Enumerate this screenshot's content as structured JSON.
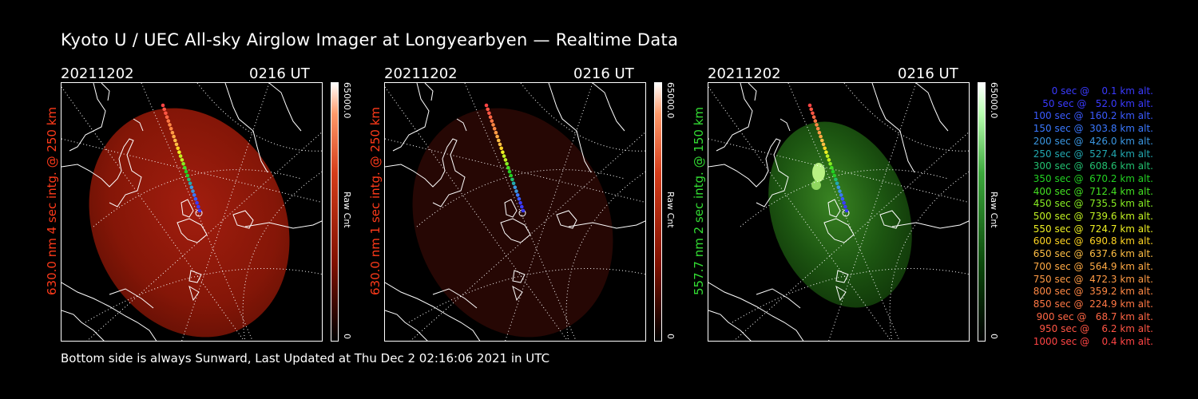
{
  "title": "Kyoto U / UEC All-sky Airglow Imager at Longyearbyen — Realtime Data",
  "footer": "Bottom side is always Sunward, Last Updated at Thu Dec  2 02:16:06 2021 in UTC",
  "panels": [
    {
      "date": "20211202",
      "time": "0216 UT",
      "label": "630.0 nm 4 sec intg. @ 250 km",
      "label_color": "#ff3a1a",
      "cbar_max": "65000.0",
      "cbar_min": "0",
      "cbar_unit": "Raw Cnt"
    },
    {
      "date": "20211202",
      "time": "0216 UT",
      "label": "630.0 nm 1 sec intg. @ 250 km",
      "label_color": "#ff3a1a",
      "cbar_max": "65000.0",
      "cbar_min": "0",
      "cbar_unit": "Raw Cnt"
    },
    {
      "date": "20211202",
      "time": "0216 UT",
      "label": "557.7 nm 2 sec intg. @ 150 km",
      "label_color": "#33dd33",
      "cbar_max": "65000.0",
      "cbar_min": "0",
      "cbar_unit": "Raw Cnt"
    }
  ],
  "legend": [
    {
      "text": "  0 sec @    0.1 km alt.",
      "color": "#3a3aff"
    },
    {
      "text": " 50 sec @   52.0 km alt.",
      "color": "#3a3aff"
    },
    {
      "text": "100 sec @  160.2 km alt.",
      "color": "#3a5aff"
    },
    {
      "text": "150 sec @  303.8 km alt.",
      "color": "#3a78ff"
    },
    {
      "text": "200 sec @  426.0 km alt.",
      "color": "#3a96e0"
    },
    {
      "text": "250 sec @  527.4 km alt.",
      "color": "#22a8b0"
    },
    {
      "text": "300 sec @  608.6 km alt.",
      "color": "#22c070"
    },
    {
      "text": "350 sec @  670.2 km alt.",
      "color": "#22d022"
    },
    {
      "text": "400 sec @  712.4 km alt.",
      "color": "#44e022"
    },
    {
      "text": "450 sec @  735.5 km alt.",
      "color": "#88ee22"
    },
    {
      "text": "500 sec @  739.6 km alt.",
      "color": "#c0f022"
    },
    {
      "text": "550 sec @  724.7 km alt.",
      "color": "#eef022"
    },
    {
      "text": "600 sec @  690.8 km alt.",
      "color": "#ffd422"
    },
    {
      "text": "650 sec @  637.6 km alt.",
      "color": "#ffbe44"
    },
    {
      "text": "700 sec @  564.9 km alt.",
      "color": "#ffaa44"
    },
    {
      "text": "750 sec @  472.3 km alt.",
      "color": "#ff9a44"
    },
    {
      "text": "800 sec @  359.2 km alt.",
      "color": "#ff8844"
    },
    {
      "text": "850 sec @  224.9 km alt.",
      "color": "#ff7744"
    },
    {
      "text": "900 sec @   68.7 km alt.",
      "color": "#ff6644"
    },
    {
      "text": "950 sec @    6.2 km alt.",
      "color": "#ff5544"
    },
    {
      "text": "1000 sec @    0.4 km alt.",
      "color": "#ff4444"
    }
  ]
}
